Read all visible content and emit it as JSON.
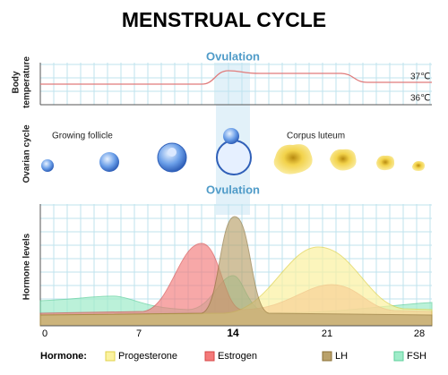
{
  "title": "MENSTRUAL CYCLE",
  "ovulation_labels": [
    "Ovulation",
    "Ovulation"
  ],
  "axis_labels": {
    "body_temperature": [
      "Body",
      "temperature"
    ],
    "ovarian_cycle": "Ovarian cycle",
    "hormone_levels": "Hormone levels"
  },
  "temperature_labels": [
    "37℃",
    "36℃"
  ],
  "ovarian_stages": {
    "growing": "Growing  follicle",
    "luteum": "Corpus luteum"
  },
  "day_ticks": [
    "0",
    "7",
    "14",
    "21",
    "28"
  ],
  "legend": {
    "title": "Hormone:",
    "items": [
      "Progesterone",
      "Estrogen",
      "LH",
      "FSH"
    ]
  }
}
